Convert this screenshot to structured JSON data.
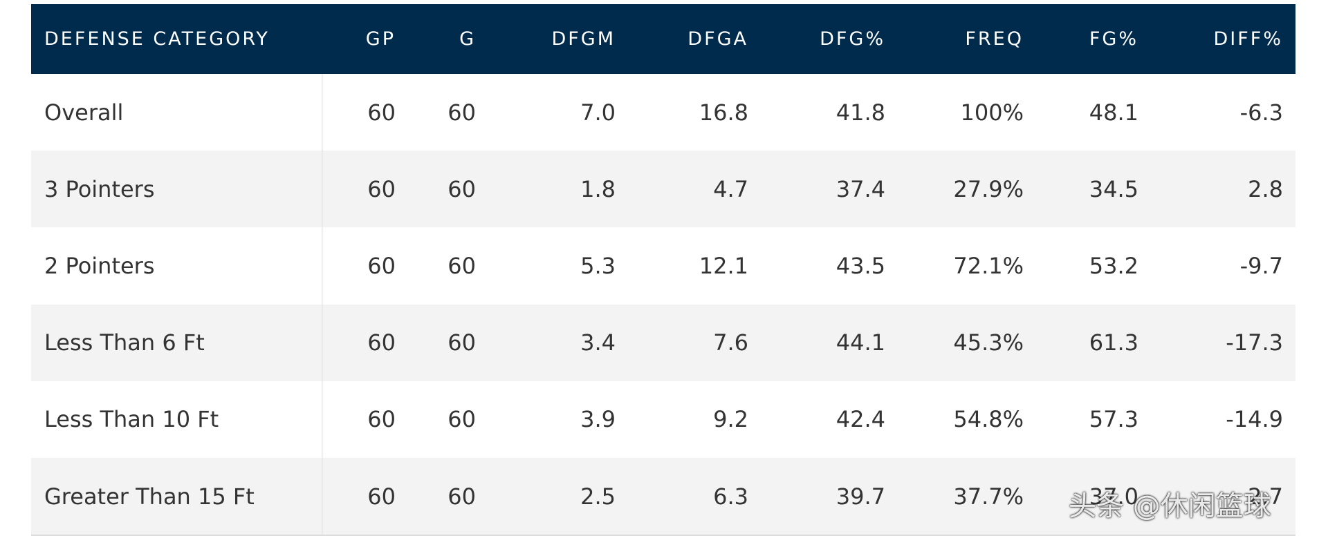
{
  "table": {
    "columns": [
      "DEFENSE CATEGORY",
      "GP",
      "G",
      "DFGM",
      "DFGA",
      "DFG%",
      "FREQ",
      "FG%",
      "DIFF%"
    ],
    "rows": [
      [
        "Overall",
        "60",
        "60",
        "7.0",
        "16.8",
        "41.8",
        "100%",
        "48.1",
        "-6.3"
      ],
      [
        "3 Pointers",
        "60",
        "60",
        "1.8",
        "4.7",
        "37.4",
        "27.9%",
        "34.5",
        "2.8"
      ],
      [
        "2 Pointers",
        "60",
        "60",
        "5.3",
        "12.1",
        "43.5",
        "72.1%",
        "53.2",
        "-9.7"
      ],
      [
        "Less Than 6 Ft",
        "60",
        "60",
        "3.4",
        "7.6",
        "44.1",
        "45.3%",
        "61.3",
        "-17.3"
      ],
      [
        "Less Than 10 Ft",
        "60",
        "60",
        "3.9",
        "9.2",
        "42.4",
        "54.8%",
        "57.3",
        "-14.9"
      ],
      [
        "Greater Than 15 Ft",
        "60",
        "60",
        "2.5",
        "6.3",
        "39.7",
        "37.7%",
        "37.0",
        "2.7"
      ]
    ]
  },
  "watermark": "头条 @休闲篮球"
}
